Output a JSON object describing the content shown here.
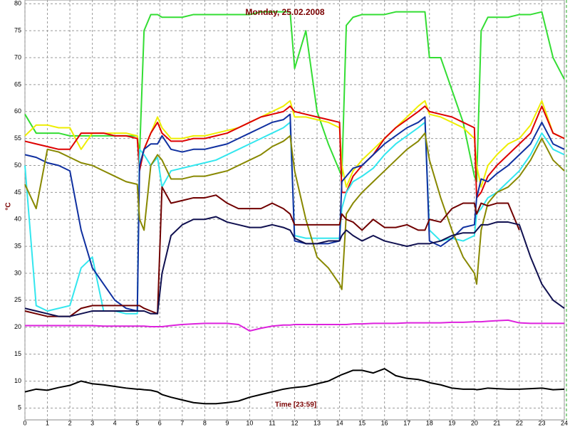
{
  "chart_data": {
    "type": "line",
    "title": "Monday, 25.02.2008",
    "y_label": "°C",
    "x_label": "Time [23:59]",
    "xlim": [
      0,
      24
    ],
    "ylim": [
      2.8,
      80.7
    ],
    "xticks": [
      0,
      1,
      2,
      3,
      4,
      5,
      6,
      7,
      8,
      9,
      10,
      11,
      12,
      13,
      14,
      15,
      16,
      17,
      18,
      19,
      20,
      21,
      22,
      23,
      24
    ],
    "yticks": [
      5,
      10,
      15,
      20,
      25,
      30,
      35,
      40,
      45,
      50,
      55,
      60,
      65,
      70,
      75,
      80
    ],
    "grid": true,
    "x": [
      0,
      0.5,
      1,
      1.5,
      2,
      2.5,
      3,
      3.5,
      4,
      4.5,
      5,
      5.1,
      5.3,
      5.6,
      5.9,
      6.1,
      6.5,
      7,
      7.5,
      8,
      8.5,
      9,
      9.5,
      10,
      10.5,
      11,
      11.5,
      11.8,
      12,
      12.5,
      13,
      13.5,
      14,
      14.1,
      14.3,
      14.6,
      15,
      15.5,
      16,
      16.5,
      17,
      17.5,
      17.8,
      18,
      18.5,
      19,
      19.5,
      20,
      20.1,
      20.3,
      20.6,
      21,
      21.5,
      22,
      22.5,
      23,
      23.5,
      24
    ],
    "series": [
      {
        "color": "#33dd33",
        "values": [
          59.5,
          56,
          56,
          56,
          55.5,
          55.5,
          55.5,
          55.5,
          55.5,
          55.5,
          55.5,
          52,
          75,
          78,
          78,
          77.5,
          77.5,
          77.5,
          78,
          78,
          78,
          78,
          78,
          78,
          78.5,
          78.5,
          78.5,
          78.5,
          68,
          75,
          60,
          54,
          49,
          48,
          76,
          77.5,
          78,
          78,
          78,
          78.5,
          78.5,
          78.5,
          78.5,
          70,
          70,
          64,
          58,
          48,
          47,
          75,
          77.5,
          77.5,
          77.5,
          78,
          78,
          78.5,
          70,
          66
        ]
      },
      {
        "color": "#eeee00",
        "values": [
          55.5,
          57.5,
          57.5,
          57,
          57,
          53,
          56,
          56,
          56,
          56,
          55.5,
          50,
          53,
          56,
          59,
          57,
          55,
          55,
          55.5,
          55.5,
          56,
          56.5,
          57,
          58,
          59,
          60,
          61,
          62,
          59,
          59,
          58.5,
          58,
          57,
          50,
          46,
          49,
          51,
          53,
          55,
          57,
          59,
          61,
          62,
          59.5,
          59,
          58,
          57,
          55,
          50,
          46,
          50,
          52,
          54,
          55,
          57.5,
          62,
          56,
          55
        ]
      },
      {
        "color": "#dd0000",
        "values": [
          54.5,
          54,
          53.5,
          53,
          53,
          56,
          56,
          56,
          55.5,
          55.5,
          55,
          49,
          53,
          56,
          58,
          56,
          54.5,
          54.5,
          55,
          55,
          55.5,
          56,
          57,
          58,
          59,
          59.5,
          60,
          61,
          60,
          59.5,
          59,
          58.5,
          58,
          45,
          45,
          48,
          50,
          52,
          55,
          57,
          58.5,
          60,
          61,
          60,
          59.5,
          59,
          58,
          57,
          44,
          45,
          48,
          50,
          52,
          54,
          56,
          61,
          56,
          55
        ]
      },
      {
        "color": "#33e6ee",
        "values": [
          50,
          24,
          23,
          23.5,
          24,
          31,
          33,
          23,
          23,
          22.5,
          22.5,
          53,
          52,
          50,
          51.5,
          46,
          49,
          49.5,
          50,
          50.5,
          51,
          52,
          53,
          54,
          55,
          56,
          57,
          58,
          37,
          36.5,
          36.5,
          36.5,
          36.5,
          42,
          45,
          47,
          48,
          49.5,
          52,
          54,
          55.5,
          57,
          58,
          38,
          36,
          36.5,
          36,
          37,
          41,
          42,
          44,
          45,
          47,
          49,
          52,
          56,
          53,
          52
        ]
      },
      {
        "color": "#1030a0",
        "values": [
          52,
          51.5,
          50.5,
          50,
          49,
          38,
          31,
          28,
          25,
          23.5,
          23,
          50,
          53,
          54,
          54,
          55.5,
          53,
          52.5,
          53,
          53,
          53.5,
          54,
          55,
          56,
          57,
          58,
          58.5,
          59.5,
          36,
          35.5,
          35.5,
          35.5,
          36,
          47,
          48,
          49.5,
          50,
          52,
          54,
          55.5,
          57,
          58,
          59,
          36,
          35,
          36.5,
          38.5,
          39,
          44,
          47.5,
          47,
          48.5,
          50,
          52,
          54,
          58,
          54,
          53
        ]
      },
      {
        "color": "#888800",
        "values": [
          46.5,
          42,
          53,
          52.5,
          51.5,
          50.5,
          50,
          49,
          48,
          47,
          46.5,
          40,
          38,
          50,
          52,
          51,
          47.5,
          47.5,
          48,
          48,
          48.5,
          49,
          50,
          51,
          52,
          53.5,
          54.5,
          55.5,
          49,
          40,
          33,
          31,
          28,
          27,
          41,
          43,
          45,
          47,
          49,
          51,
          53,
          54.5,
          56,
          51,
          44,
          38,
          33,
          30,
          28,
          38,
          43,
          45,
          46,
          48,
          51,
          55,
          51,
          49
        ]
      },
      {
        "color": "#700000",
        "values": [
          23,
          22.5,
          22,
          22,
          22,
          23.5,
          24,
          24,
          24,
          24,
          24,
          24,
          23.5,
          23,
          22.5,
          46,
          43,
          43.5,
          44,
          44,
          44.5,
          43,
          42,
          42,
          42,
          43,
          42,
          41,
          39,
          39,
          39,
          39,
          39,
          41,
          40,
          39.5,
          38,
          40,
          38.5,
          38.5,
          39,
          38,
          38,
          40,
          39.5,
          42,
          43,
          43,
          41,
          43,
          42.5,
          43,
          43,
          38,
          null,
          null,
          null,
          null
        ]
      },
      {
        "color": "#101050",
        "values": [
          23.5,
          23,
          22.5,
          22,
          22,
          22.5,
          23,
          23,
          23,
          23,
          23,
          23,
          23,
          22.5,
          22.5,
          30,
          37,
          39,
          40,
          40,
          40.5,
          39.5,
          39,
          38.5,
          38.5,
          39,
          38.5,
          38,
          36.5,
          35.5,
          35.5,
          36,
          36,
          37,
          38,
          37,
          36,
          37,
          36,
          35.5,
          35,
          35.5,
          35.5,
          35.5,
          36,
          37,
          37.5,
          37.5,
          38,
          39,
          39,
          39.5,
          39.5,
          39,
          33,
          28,
          25,
          23.5
        ]
      },
      {
        "color": "#dd22dd",
        "values": [
          20.3,
          20.3,
          20.3,
          20.3,
          20.3,
          20.3,
          20.3,
          20.2,
          20.2,
          20.2,
          20.2,
          20.2,
          20.2,
          20.1,
          20.1,
          20.1,
          20.3,
          20.5,
          20.6,
          20.7,
          20.7,
          20.7,
          20.5,
          19.3,
          19.8,
          20.2,
          20.4,
          20.4,
          20.5,
          20.5,
          20.5,
          20.5,
          20.5,
          20.5,
          20.5,
          20.6,
          20.6,
          20.7,
          20.7,
          20.7,
          20.8,
          20.8,
          20.8,
          20.8,
          20.8,
          20.9,
          20.9,
          21,
          21,
          21,
          21.1,
          21.2,
          21.3,
          20.8,
          20.7,
          20.7,
          20.7,
          20.7
        ]
      },
      {
        "color": "#000000",
        "values": [
          8,
          8.5,
          8.3,
          8.8,
          9.2,
          10,
          9.5,
          9.3,
          9,
          8.7,
          8.5,
          8.5,
          8.4,
          8.3,
          8,
          7.5,
          7,
          6.5,
          6,
          5.8,
          5.8,
          6,
          6.3,
          7,
          7.5,
          8,
          8.5,
          8.7,
          8.8,
          9,
          9.5,
          10,
          11,
          11.2,
          11.5,
          12,
          12,
          11.5,
          12.3,
          11,
          10.5,
          10.3,
          10,
          9.7,
          9.3,
          8.7,
          8.5,
          8.5,
          8.4,
          8.5,
          8.7,
          8.6,
          8.5,
          8.5,
          8.6,
          8.7,
          8.4,
          8.5
        ]
      }
    ]
  }
}
